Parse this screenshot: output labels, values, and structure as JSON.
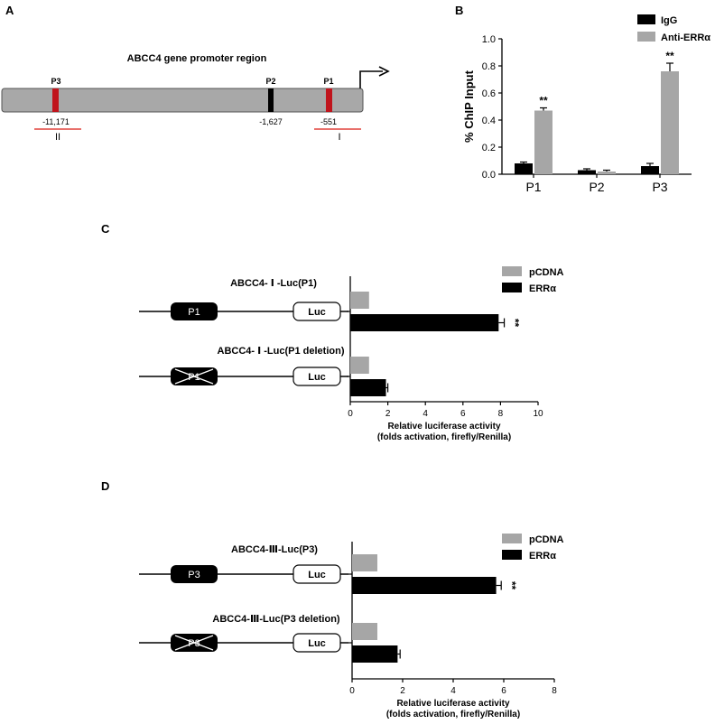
{
  "panel_a": {
    "letter": "A",
    "title": "ABCC4 gene promoter region",
    "sites": [
      {
        "name": "P3",
        "position": "-11,171",
        "color": "#c0141c"
      },
      {
        "name": "P2",
        "position": "-1,627",
        "color": "#000000"
      },
      {
        "name": "P1",
        "position": "-551",
        "color": "#c0141c"
      }
    ],
    "regions": [
      {
        "label": "II",
        "color": "#e0403a"
      },
      {
        "label": "I",
        "color": "#e0403a"
      }
    ]
  },
  "panel_b": {
    "letter": "B"
  },
  "panel_c": {
    "letter": "C",
    "constructs": [
      {
        "label": "ABCC4- Ⅰ -Luc(P1)",
        "box": "P1",
        "deleted": false
      },
      {
        "label": "ABCC4- Ⅰ -Luc(P1 deletion)",
        "box": "P1",
        "deleted": true
      }
    ],
    "luc_label": "Luc"
  },
  "panel_d": {
    "letter": "D",
    "constructs": [
      {
        "label": "ABCC4-Ⅲ-Luc(P3)",
        "box": "P3",
        "deleted": false
      },
      {
        "label": "ABCC4-Ⅲ-Luc(P3 deletion)",
        "box": "P3",
        "deleted": true
      }
    ],
    "luc_label": "Luc"
  },
  "colors": {
    "black": "#000000",
    "gray": "#a6a6a6",
    "promoter": "#a8a8a8"
  },
  "chart_data": [
    {
      "id": "B",
      "type": "bar",
      "categories": [
        "P1",
        "P2",
        "P3"
      ],
      "series": [
        {
          "name": "IgG",
          "values": [
            0.08,
            0.03,
            0.06
          ],
          "errors": [
            0.01,
            0.01,
            0.02
          ],
          "color": "#000000"
        },
        {
          "name": "Anti-ERRα",
          "values": [
            0.47,
            0.02,
            0.76
          ],
          "errors": [
            0.02,
            0.01,
            0.06
          ],
          "color": "#a6a6a6"
        }
      ],
      "significance": [
        {
          "category": "P1",
          "series": "Anti-ERRα",
          "label": "**"
        },
        {
          "category": "P3",
          "series": "Anti-ERRα",
          "label": "**"
        }
      ],
      "ylabel": "% ChIP Input",
      "ylim": [
        0,
        1.0
      ],
      "yticks": [
        "0.0",
        "0.2",
        "0.4",
        "0.6",
        "0.8",
        "1.0"
      ],
      "legend": "top-right"
    },
    {
      "id": "C",
      "type": "bar",
      "orientation": "horizontal",
      "categories": [
        "ABCC4- Ⅰ -Luc(P1)",
        "ABCC4- Ⅰ -Luc(P1 deletion)"
      ],
      "series": [
        {
          "name": "pCDNA",
          "values": [
            1.0,
            1.0
          ],
          "color": "#a6a6a6"
        },
        {
          "name": "ERRα",
          "values": [
            7.9,
            1.9
          ],
          "errors": [
            0.3,
            0.1
          ],
          "color": "#000000"
        }
      ],
      "significance": [
        {
          "category": "ABCC4- Ⅰ -Luc(P1)",
          "series": "ERRα",
          "label": "**"
        }
      ],
      "xlabel": "Relative luciferase activity",
      "xlabel2": "(folds activation, firefly/Renilla)",
      "xlim": [
        0,
        10
      ],
      "xticks": [
        "0",
        "2",
        "4",
        "6",
        "8",
        "10"
      ],
      "legend": "top-right"
    },
    {
      "id": "D",
      "type": "bar",
      "orientation": "horizontal",
      "categories": [
        "ABCC4-Ⅲ-Luc(P3)",
        "ABCC4-Ⅲ-Luc(P3 deletion)"
      ],
      "series": [
        {
          "name": "pCDNA",
          "values": [
            1.0,
            1.0
          ],
          "color": "#a6a6a6"
        },
        {
          "name": "ERRα",
          "values": [
            5.7,
            1.8
          ],
          "errors": [
            0.2,
            0.1
          ],
          "color": "#000000"
        }
      ],
      "significance": [
        {
          "category": "ABCC4-Ⅲ-Luc(P3)",
          "series": "ERRα",
          "label": "**"
        }
      ],
      "xlabel": "Relative luciferase activity",
      "xlabel2": "(folds activation, firefly/Renilla)",
      "xlim": [
        0,
        8
      ],
      "xticks": [
        "0",
        "2",
        "4",
        "6",
        "8"
      ],
      "legend": "top-right"
    }
  ]
}
